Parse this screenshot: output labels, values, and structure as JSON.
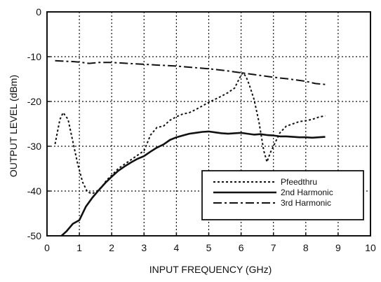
{
  "chart_data": {
    "type": "line",
    "xlabel": "INPUT FREQUENCY (GHz)",
    "ylabel": "OUTPUT LEVEL (dBm)",
    "xlim": [
      0,
      10
    ],
    "ylim": [
      -50,
      0
    ],
    "xticks": [
      0,
      1,
      2,
      3,
      4,
      5,
      6,
      7,
      8,
      9,
      10
    ],
    "yticks": [
      0,
      -10,
      -20,
      -30,
      -40,
      -50
    ],
    "grid": true,
    "legend_position": "bottom-right",
    "series": [
      {
        "name": "Pfeedthru",
        "style": "dotted",
        "x": [
          0.25,
          0.4,
          0.5,
          0.65,
          0.8,
          0.95,
          1.1,
          1.25,
          1.4,
          1.55,
          1.7,
          1.85,
          2.0,
          2.2,
          2.4,
          2.6,
          2.8,
          3.0,
          3.2,
          3.4,
          3.6,
          3.8,
          4.0,
          4.2,
          4.4,
          4.6,
          4.8,
          5.0,
          5.2,
          5.4,
          5.6,
          5.8,
          5.95,
          6.05,
          6.15,
          6.25,
          6.4,
          6.55,
          6.7,
          6.8,
          6.9,
          7.0,
          7.2,
          7.4,
          7.6,
          7.8,
          8.0,
          8.2,
          8.4,
          8.6
        ],
        "y": [
          -29.5,
          -24,
          -22.5,
          -24,
          -29,
          -34,
          -38,
          -40.2,
          -40.6,
          -40,
          -39,
          -37.5,
          -36.5,
          -35,
          -34,
          -33,
          -32,
          -31,
          -27.5,
          -25.8,
          -25.5,
          -24.2,
          -23.4,
          -22.8,
          -22.5,
          -21.8,
          -21,
          -20.2,
          -19.5,
          -18.8,
          -18,
          -17,
          -14.8,
          -13.6,
          -14.4,
          -16.2,
          -19.5,
          -24.5,
          -31,
          -33.5,
          -31.5,
          -30,
          -27,
          -25.5,
          -25,
          -24.5,
          -24.3,
          -24,
          -23.5,
          -23.2
        ]
      },
      {
        "name": "2nd Harmonic",
        "style": "solid",
        "x": [
          0.45,
          0.6,
          0.8,
          1.0,
          1.2,
          1.4,
          1.6,
          1.8,
          2.0,
          2.2,
          2.4,
          2.6,
          2.8,
          3.0,
          3.2,
          3.4,
          3.6,
          3.8,
          4.0,
          4.2,
          4.4,
          4.6,
          4.8,
          5.0,
          5.2,
          5.4,
          5.6,
          5.8,
          6.0,
          6.2,
          6.4,
          6.6,
          6.8,
          7.0,
          7.2,
          7.4,
          7.6,
          7.8,
          8.0,
          8.2,
          8.4,
          8.6
        ],
        "y": [
          -50,
          -49,
          -47.3,
          -46.5,
          -43.5,
          -41.5,
          -39.8,
          -38.2,
          -36.8,
          -35.5,
          -34.5,
          -33.6,
          -32.8,
          -32.2,
          -31.2,
          -30.3,
          -29.6,
          -28.6,
          -28.0,
          -27.6,
          -27.2,
          -27.0,
          -26.8,
          -26.7,
          -26.9,
          -27.1,
          -27.2,
          -27.1,
          -27.0,
          -27.2,
          -27.4,
          -27.3,
          -27.5,
          -27.6,
          -27.8,
          -27.8,
          -27.9,
          -28.0,
          -28.0,
          -28.1,
          -28.0,
          -27.9
        ]
      },
      {
        "name": "3rd Harmonic",
        "style": "dashdot",
        "x": [
          0.25,
          0.5,
          0.8,
          1.0,
          1.3,
          1.6,
          2.0,
          2.5,
          3.0,
          3.5,
          4.0,
          4.5,
          5.0,
          5.5,
          6.0,
          6.5,
          7.0,
          7.5,
          8.0,
          8.3,
          8.6
        ],
        "y": [
          -10.9,
          -11.0,
          -11.1,
          -11.2,
          -11.5,
          -11.3,
          -11.3,
          -11.5,
          -11.7,
          -11.9,
          -12.1,
          -12.4,
          -12.7,
          -13.1,
          -13.6,
          -14.1,
          -14.6,
          -15.0,
          -15.5,
          -16.0,
          -16.2
        ]
      }
    ]
  }
}
